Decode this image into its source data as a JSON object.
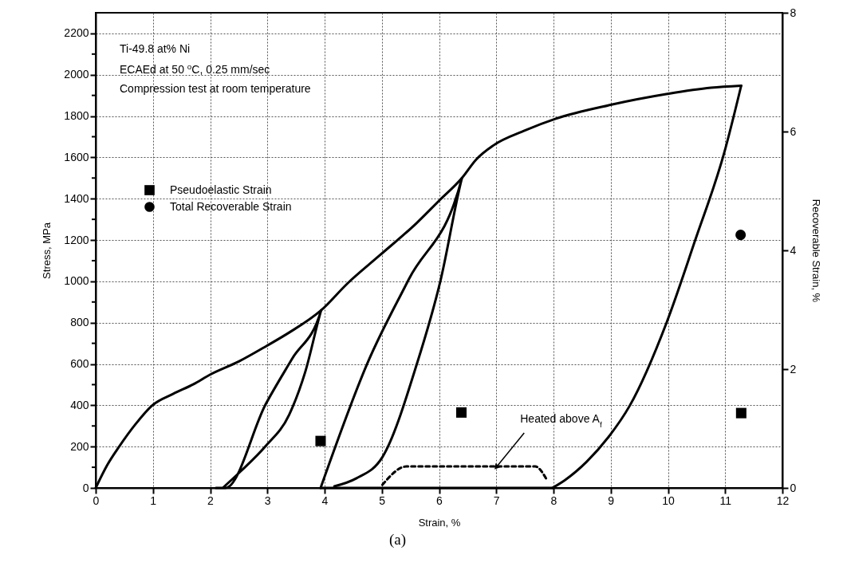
{
  "chart_data": {
    "type": "line",
    "title": "(a)",
    "xlabel": "Strain, %",
    "ylabel": "Stress, MPa",
    "y2label": "Recoverable Strain, %",
    "xlim": [
      0,
      12
    ],
    "xticks": [
      0,
      1,
      2,
      3,
      4,
      5,
      6,
      7,
      8,
      9,
      10,
      11,
      12
    ],
    "ylim": [
      0,
      2300
    ],
    "yticks": [
      0,
      {
        "value": 100,
        "label": null
      },
      200,
      {
        "value": 300,
        "label": null
      },
      400,
      {
        "value": 500,
        "label": null
      },
      600,
      {
        "value": 700,
        "label": null
      },
      800,
      {
        "value": 900,
        "label": null
      },
      1000,
      {
        "value": 1100,
        "label": null
      },
      1200,
      {
        "value": 1300,
        "label": null
      },
      1400,
      {
        "value": 1500,
        "label": null
      },
      1600,
      {
        "value": 1700,
        "label": null
      },
      1800,
      {
        "value": 1900,
        "label": null
      },
      2000,
      {
        "value": 2100,
        "label": null
      },
      2200
    ],
    "y2lim": [
      0,
      8
    ],
    "y2ticks": [
      0,
      2,
      4,
      6,
      8
    ],
    "grid": true,
    "legend": "top left",
    "annotations": [
      "Ti-49.8 at% Ni",
      "ECAEd at 50 $^{o}$C, 0.25 mm/sec",
      "Compression test at room temperature",
      {
        "text": "Heated above A$_{f}$",
        "x": 7,
        "y": 100
      }
    ],
    "series": [
      {
        "color": "#000000",
        "x": [
          0,
          0.2,
          0.41,
          0.7,
          0.99,
          1.35,
          1.71,
          1.99,
          2.5,
          2.99,
          3.38,
          3.94,
          4.4,
          4.96,
          5.6,
          6.0,
          6.4,
          6.65,
          6.95,
          7.5,
          8.04,
          8.98,
          9.99,
          10.75,
          11.28
        ],
        "values": [
          0,
          110,
          200,
          310,
          400,
          455,
          502,
          547,
          612,
          688,
          752,
          860,
          990,
          1125,
          1280,
          1390,
          1500,
          1590,
          1658,
          1730,
          1787,
          1853,
          1907,
          1937,
          1947
        ]
      },
      {
        "color": "#000000",
        "x": [
          2.1,
          2.27,
          2.97,
          3.43,
          3.94,
          3.66,
          3.38,
          2.96,
          2.55,
          2.22
        ],
        "values": [
          0,
          0,
          405,
          624,
          860,
          560,
          354,
          200,
          85,
          0
        ]
      },
      {
        "color": "#000000",
        "x": [
          3.93,
          4.76,
          5.47,
          6.4,
          6.03,
          5.61,
          5.01,
          4.55,
          4.17
        ],
        "values": [
          0,
          611,
          1009,
          1500,
          1009,
          598,
          149,
          46,
          8
        ]
      },
      {
        "color": "#000000",
        "x": [
          11.28,
          10.99,
          10.47,
          9.98,
          9.33,
          8.96,
          8.58,
          8.2,
          7.98
        ],
        "values": [
          1947,
          1629,
          1194,
          803,
          397,
          246,
          127,
          38,
          0
        ]
      },
      {
        "color": "#000000",
        "x": [
          3.93,
          8
        ],
        "values": [
          0,
          0
        ]
      },
      {
        "color": "#000000",
        "line_style": "dashed",
        "x": [
          5.01,
          5.43,
          7.68,
          7.87
        ],
        "values": [
          15,
          104,
          104,
          46
        ]
      },
      {
        "type": "scatter",
        "name": "Pseudoelastic Strain",
        "color": "#000000",
        "axis": "y2",
        "marker": "square",
        "x": [
          3.93,
          6.39,
          11.28
        ],
        "values": [
          0.79,
          1.27,
          1.26
        ]
      },
      {
        "type": "scatter",
        "name": "Total Recoverable Strain",
        "color": "#000000",
        "axis": "y2",
        "marker": "circle",
        "x": [
          11.27
        ],
        "values": [
          4.26
        ]
      }
    ]
  }
}
